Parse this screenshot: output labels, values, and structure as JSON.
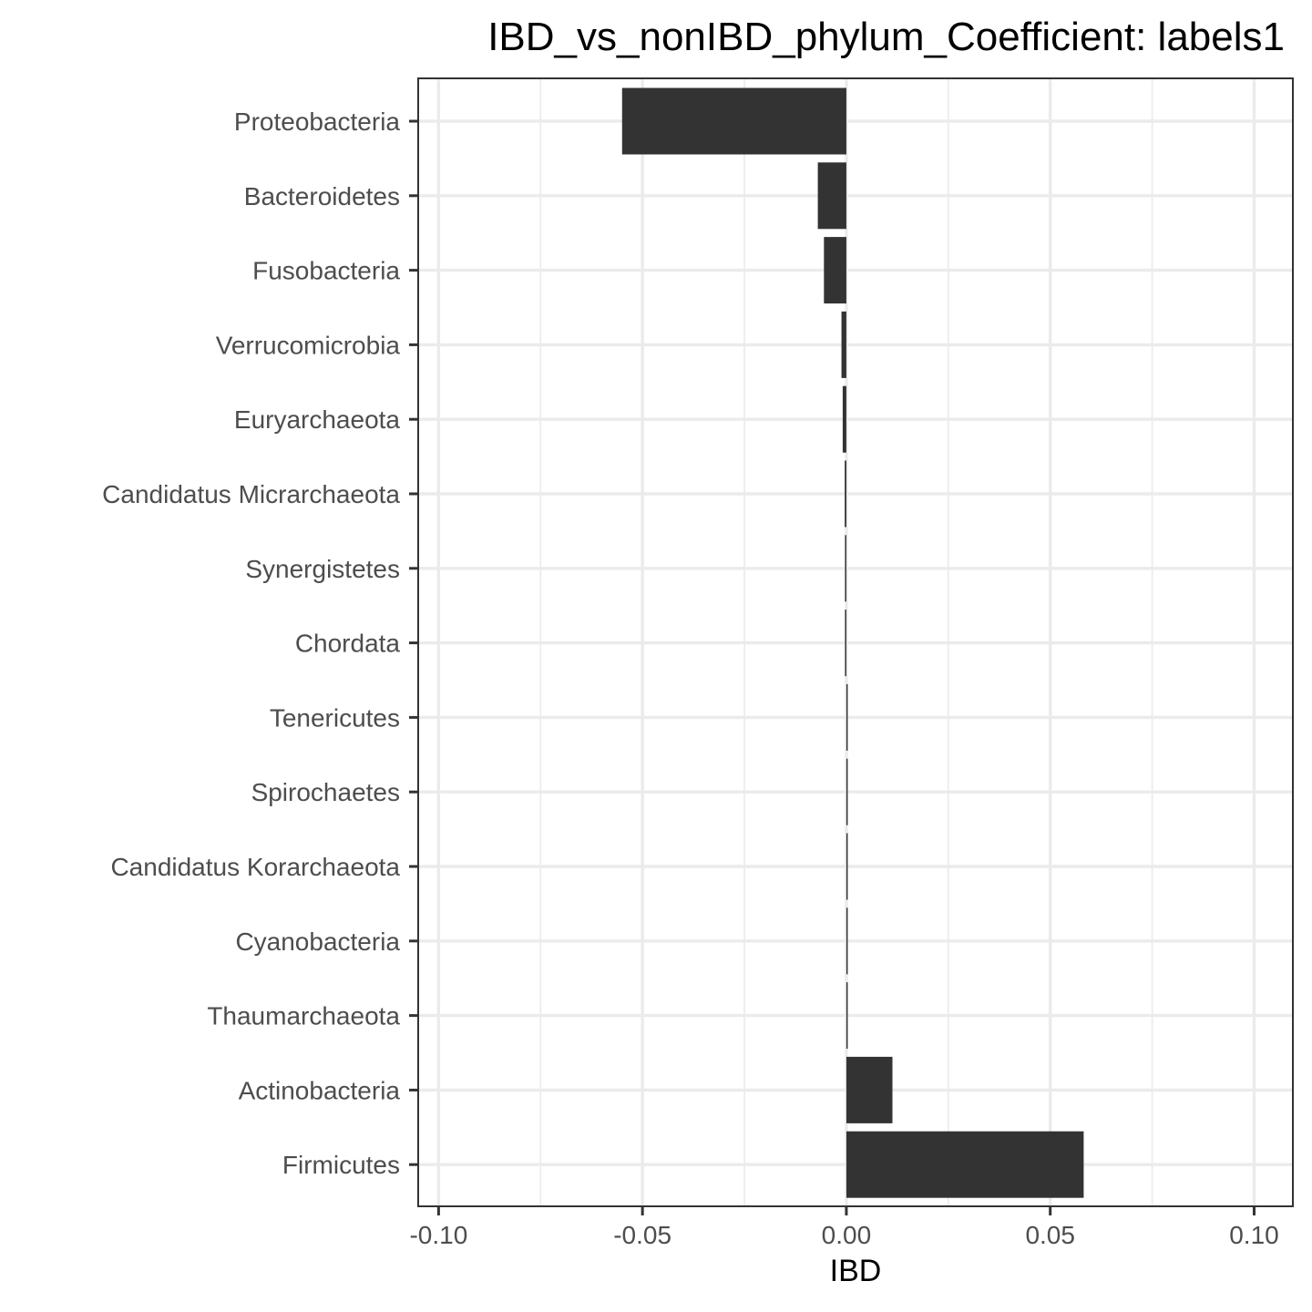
{
  "chart_data": {
    "type": "bar",
    "orientation": "horizontal",
    "title": "IBD_vs_nonIBD_phylum_Coefficient: labels1",
    "xlabel": "IBD",
    "ylabel": "",
    "xlim": [
      -0.105,
      0.1095
    ],
    "x_ticks": [
      -0.1,
      -0.05,
      0.0,
      0.05,
      0.1
    ],
    "x_tick_labels": [
      "-0.10",
      "-0.05",
      "0.00",
      "0.05",
      "0.10"
    ],
    "grid": true,
    "legend": "none",
    "categories": [
      "Proteobacteria",
      "Bacteroidetes",
      "Fusobacteria",
      "Verrucomicrobia",
      "Euryarchaeota",
      "Candidatus Micrarchaeota",
      "Synergistetes",
      "Chordata",
      "Tenericutes",
      "Spirochaetes",
      "Candidatus Korarchaeota",
      "Cyanobacteria",
      "Thaumarchaeota",
      "Actinobacteria",
      "Firmicutes"
    ],
    "values": [
      -0.055,
      -0.007,
      -0.0055,
      -0.0012,
      -0.0009,
      -0.0004,
      -0.0002,
      -0.0001,
      0.0001,
      0.0001,
      0.0001,
      0.0001,
      0.0003,
      0.0113,
      0.0582
    ],
    "colors": {
      "bar": "#333333",
      "grid": "#ebebeb",
      "panel_border": "#333333",
      "tick_text": "#4d4d4d",
      "title_text": "#000000"
    }
  }
}
